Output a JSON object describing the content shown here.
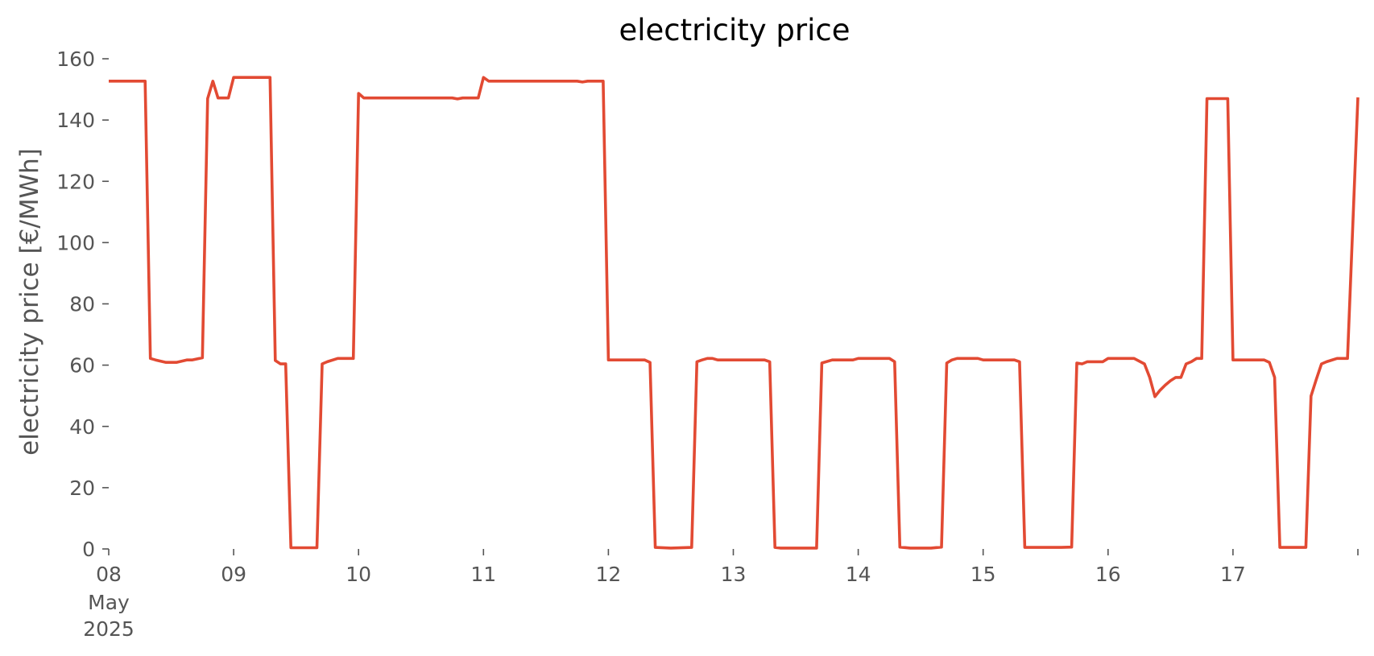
{
  "chart_data": {
    "type": "line",
    "title": "electricity price",
    "xlabel": "",
    "ylabel": "electricity price [€/MWh]",
    "xlim": [
      "2025-05-08 00:00",
      "2025-05-18 00:00"
    ],
    "ylim": [
      0,
      160
    ],
    "yticks": [
      0,
      20,
      40,
      60,
      80,
      100,
      120,
      140,
      160
    ],
    "yticklabels": [
      "0",
      "20",
      "40",
      "60",
      "80",
      "100",
      "120",
      "140",
      "160"
    ],
    "xticks": [
      {
        "x": "2025-05-08 00:00",
        "label": "08",
        "sublabel1": "May",
        "sublabel2": "2025"
      },
      {
        "x": "2025-05-09 00:00",
        "label": "09"
      },
      {
        "x": "2025-05-10 00:00",
        "label": "10"
      },
      {
        "x": "2025-05-11 00:00",
        "label": "11"
      },
      {
        "x": "2025-05-12 00:00",
        "label": "12"
      },
      {
        "x": "2025-05-13 00:00",
        "label": "13"
      },
      {
        "x": "2025-05-14 00:00",
        "label": "14"
      },
      {
        "x": "2025-05-15 00:00",
        "label": "15"
      },
      {
        "x": "2025-05-16 00:00",
        "label": "16"
      },
      {
        "x": "2025-05-17 00:00",
        "label": "17"
      },
      {
        "x": "2025-05-18 00:00",
        "label": ""
      }
    ],
    "grid": false,
    "series": [
      {
        "color": "#e24a33",
        "points": [
          [
            "2025-05-08 00:00",
            152.7
          ],
          [
            "2025-05-08 07:00",
            152.7
          ],
          [
            "2025-05-08 08:00",
            62.2
          ],
          [
            "2025-05-08 09:00",
            61.7
          ],
          [
            "2025-05-08 11:00",
            60.9
          ],
          [
            "2025-05-08 13:00",
            60.9
          ],
          [
            "2025-05-08 15:00",
            61.7
          ],
          [
            "2025-05-08 16:00",
            61.7
          ],
          [
            "2025-05-08 18:00",
            62.4
          ],
          [
            "2025-05-08 19:00",
            147.0
          ],
          [
            "2025-05-08 20:00",
            152.7
          ],
          [
            "2025-05-08 21:00",
            147.2
          ],
          [
            "2025-05-08 23:00",
            147.2
          ],
          [
            "2025-05-09 00:00",
            153.9
          ],
          [
            "2025-05-09 07:00",
            153.9
          ],
          [
            "2025-05-09 08:00",
            61.5
          ],
          [
            "2025-05-09 09:00",
            60.4
          ],
          [
            "2025-05-09 10:00",
            60.4
          ],
          [
            "2025-05-09 11:00",
            0.4
          ],
          [
            "2025-05-09 16:00",
            0.4
          ],
          [
            "2025-05-09 17:00",
            60.4
          ],
          [
            "2025-05-09 18:00",
            61.1
          ],
          [
            "2025-05-09 20:00",
            62.2
          ],
          [
            "2025-05-09 23:00",
            62.2
          ],
          [
            "2025-05-10 00:00",
            148.7
          ],
          [
            "2025-05-10 01:00",
            147.2
          ],
          [
            "2025-05-10 18:00",
            147.2
          ],
          [
            "2025-05-10 19:00",
            146.9
          ],
          [
            "2025-05-10 20:00",
            147.2
          ],
          [
            "2025-05-10 23:00",
            147.2
          ],
          [
            "2025-05-11 00:00",
            153.9
          ],
          [
            "2025-05-11 01:00",
            152.7
          ],
          [
            "2025-05-11 18:00",
            152.7
          ],
          [
            "2025-05-11 19:00",
            152.4
          ],
          [
            "2025-05-11 20:00",
            152.7
          ],
          [
            "2025-05-11 23:00",
            152.7
          ],
          [
            "2025-05-12 00:00",
            61.7
          ],
          [
            "2025-05-12 07:00",
            61.7
          ],
          [
            "2025-05-12 08:00",
            60.9
          ],
          [
            "2025-05-12 09:00",
            0.5
          ],
          [
            "2025-05-12 12:00",
            0.3
          ],
          [
            "2025-05-12 16:00",
            0.5
          ],
          [
            "2025-05-12 17:00",
            61.1
          ],
          [
            "2025-05-12 18:00",
            61.7
          ],
          [
            "2025-05-12 19:00",
            62.2
          ],
          [
            "2025-05-12 20:00",
            62.2
          ],
          [
            "2025-05-12 21:00",
            61.7
          ],
          [
            "2025-05-13 06:00",
            61.7
          ],
          [
            "2025-05-13 07:00",
            61.1
          ],
          [
            "2025-05-13 08:00",
            0.5
          ],
          [
            "2025-05-13 09:00",
            0.3
          ],
          [
            "2025-05-13 16:00",
            0.3
          ],
          [
            "2025-05-13 17:00",
            60.7
          ],
          [
            "2025-05-13 19:00",
            61.7
          ],
          [
            "2025-05-13 23:00",
            61.7
          ],
          [
            "2025-05-14 00:00",
            62.2
          ],
          [
            "2025-05-14 06:00",
            62.2
          ],
          [
            "2025-05-14 07:00",
            61.1
          ],
          [
            "2025-05-14 08:00",
            0.6
          ],
          [
            "2025-05-14 10:00",
            0.3
          ],
          [
            "2025-05-14 14:00",
            0.3
          ],
          [
            "2025-05-14 16:00",
            0.6
          ],
          [
            "2025-05-14 17:00",
            60.7
          ],
          [
            "2025-05-14 18:00",
            61.7
          ],
          [
            "2025-05-14 19:00",
            62.2
          ],
          [
            "2025-05-14 23:00",
            62.2
          ],
          [
            "2025-05-15 00:00",
            61.7
          ],
          [
            "2025-05-15 06:00",
            61.7
          ],
          [
            "2025-05-15 07:00",
            61.1
          ],
          [
            "2025-05-15 08:00",
            0.5
          ],
          [
            "2025-05-15 15:00",
            0.5
          ],
          [
            "2025-05-15 17:00",
            0.6
          ],
          [
            "2025-05-15 18:00",
            60.7
          ],
          [
            "2025-05-15 19:00",
            60.4
          ],
          [
            "2025-05-15 20:00",
            61.1
          ],
          [
            "2025-05-15 23:00",
            61.1
          ],
          [
            "2025-05-16 00:00",
            62.2
          ],
          [
            "2025-05-16 05:00",
            62.2
          ],
          [
            "2025-05-16 07:00",
            60.4
          ],
          [
            "2025-05-16 08:00",
            56.0
          ],
          [
            "2025-05-16 09:00",
            49.7
          ],
          [
            "2025-05-16 10:00",
            51.8
          ],
          [
            "2025-05-16 11:00",
            53.5
          ],
          [
            "2025-05-16 12:00",
            54.9
          ],
          [
            "2025-05-16 13:00",
            56.0
          ],
          [
            "2025-05-16 14:00",
            56.0
          ],
          [
            "2025-05-16 15:00",
            60.4
          ],
          [
            "2025-05-16 16:00",
            61.1
          ],
          [
            "2025-05-16 17:00",
            62.2
          ],
          [
            "2025-05-16 18:00",
            62.2
          ],
          [
            "2025-05-16 19:00",
            147.0
          ],
          [
            "2025-05-16 23:00",
            147.0
          ],
          [
            "2025-05-17 00:00",
            61.7
          ],
          [
            "2025-05-17 06:00",
            61.7
          ],
          [
            "2025-05-17 07:00",
            60.9
          ],
          [
            "2025-05-17 08:00",
            56.0
          ],
          [
            "2025-05-17 09:00",
            0.5
          ],
          [
            "2025-05-17 14:00",
            0.5
          ],
          [
            "2025-05-17 15:00",
            49.9
          ],
          [
            "2025-05-17 16:00",
            55.3
          ],
          [
            "2025-05-17 17:00",
            60.4
          ],
          [
            "2025-05-17 18:00",
            61.1
          ],
          [
            "2025-05-17 20:00",
            62.2
          ],
          [
            "2025-05-17 22:00",
            62.2
          ],
          [
            "2025-05-18 00:00",
            147.4
          ]
        ]
      }
    ]
  }
}
